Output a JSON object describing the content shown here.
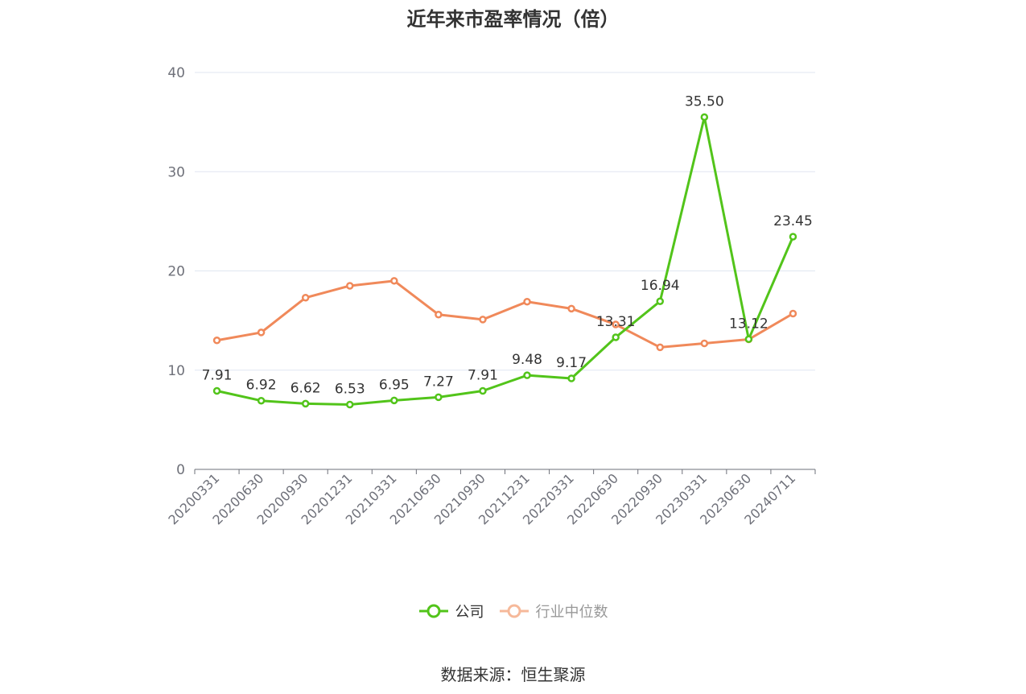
{
  "chart_data": {
    "type": "line",
    "title": "近年来市盈率情况（倍）",
    "categories": [
      "20200331",
      "20200630",
      "20200930",
      "20201231",
      "20210331",
      "20210630",
      "20210930",
      "20211231",
      "20220331",
      "20220630",
      "20220930",
      "20230331",
      "20230630",
      "20240711"
    ],
    "series": [
      {
        "name": "公司",
        "color": "#52c41a",
        "values": [
          7.91,
          6.92,
          6.62,
          6.53,
          6.95,
          7.27,
          7.91,
          9.48,
          9.17,
          13.31,
          16.94,
          35.5,
          13.12,
          23.45
        ],
        "labels": [
          "7.91",
          "6.92",
          "6.62",
          "6.53",
          "6.95",
          "7.27",
          "7.91",
          "9.48",
          "9.17",
          "13.31",
          "16.94",
          "35.50",
          "13.12",
          "23.45"
        ]
      },
      {
        "name": "行业中位数",
        "color": "#f0895a",
        "values": [
          13.0,
          13.8,
          17.3,
          18.5,
          19.0,
          15.6,
          15.1,
          16.9,
          16.2,
          14.6,
          12.3,
          12.7,
          13.1,
          15.7
        ]
      }
    ],
    "yticks": [
      "0",
      "10",
      "20",
      "30",
      "40"
    ],
    "ylim": [
      0,
      40
    ],
    "grid": true,
    "legend_position": "bottom"
  },
  "legend": {
    "company": "公司",
    "industry": "行业中位数"
  },
  "source": "数据来源：恒生聚源"
}
